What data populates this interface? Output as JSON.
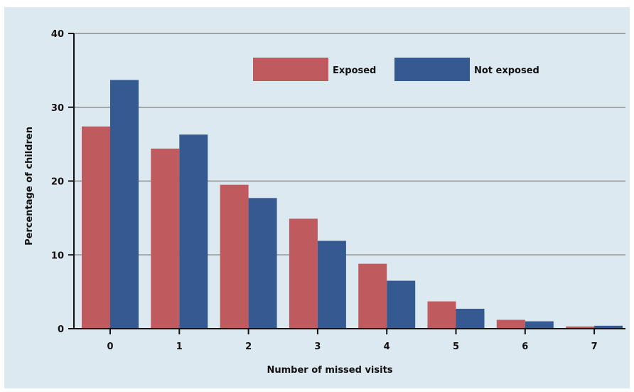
{
  "chart_data": {
    "type": "bar",
    "title": "",
    "xlabel": "Number of missed visits",
    "ylabel": "Percentage of children",
    "categories": [
      "0",
      "1",
      "2",
      "3",
      "4",
      "5",
      "6",
      "7"
    ],
    "series": [
      {
        "name": "Exposed",
        "color": "#bf5b5e",
        "values": [
          27.4,
          24.4,
          19.5,
          14.9,
          8.8,
          3.7,
          1.2,
          0.3
        ]
      },
      {
        "name": "Not exposed",
        "color": "#355a92",
        "values": [
          33.7,
          26.3,
          17.7,
          11.9,
          6.5,
          2.7,
          1.0,
          0.4
        ]
      }
    ],
    "ylim": [
      0,
      40
    ],
    "yticks": [
      "0",
      "10",
      "20",
      "30",
      "40"
    ],
    "grid": true,
    "legend_position": "top-right"
  }
}
